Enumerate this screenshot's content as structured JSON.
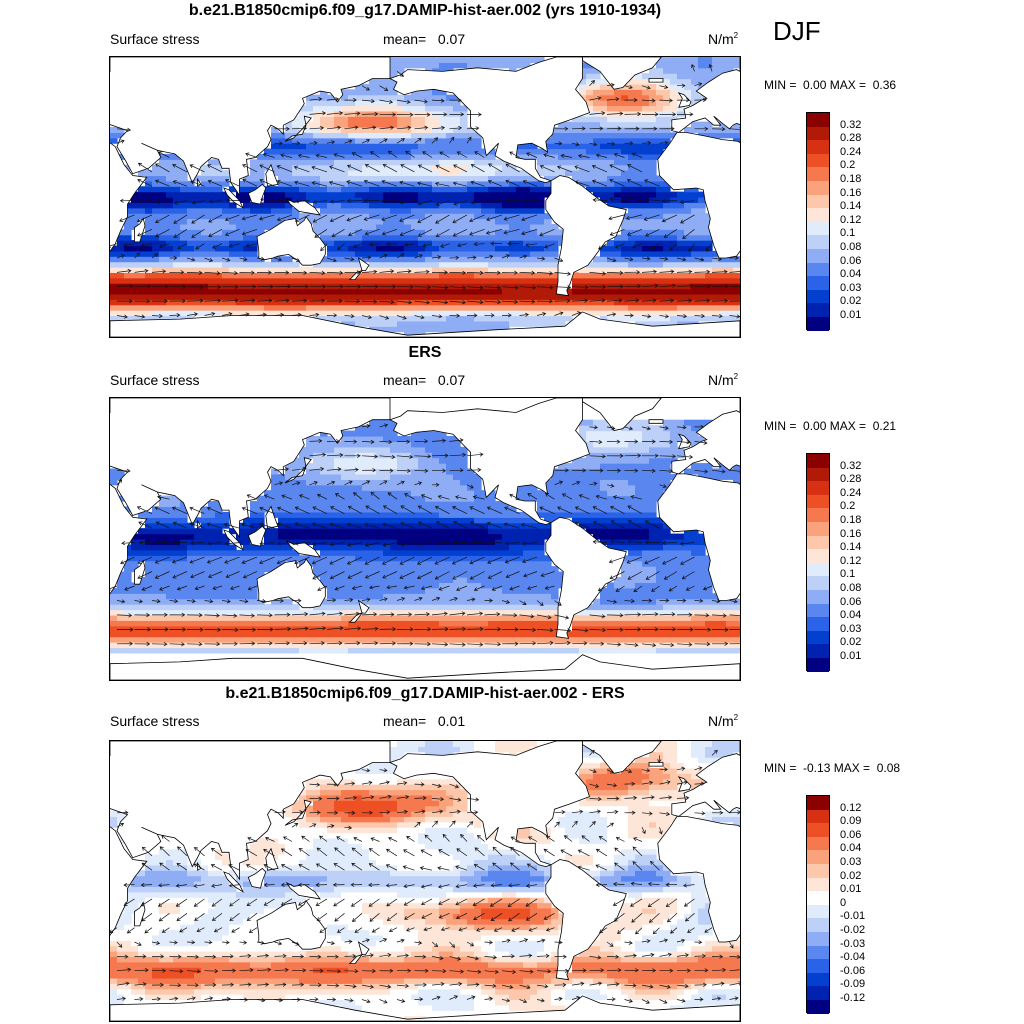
{
  "season": "DJF",
  "colors": {
    "seq": [
      "#000080",
      "#0022b0",
      "#0340d0",
      "#2a63e8",
      "#5a86f0",
      "#8fadf5",
      "#bcd0f8",
      "#e0ebfb",
      "#fde6d8",
      "#fcc7aa",
      "#f9a27c",
      "#f5784f",
      "#ee5025",
      "#d83012",
      "#b21a08",
      "#8b0000"
    ],
    "div": [
      "#000080",
      "#0022b0",
      "#0340d0",
      "#2a63e8",
      "#5a86f0",
      "#8fadf5",
      "#bcd0f8",
      "#e0ebfb",
      "#ffffff",
      "#fde6d8",
      "#fcc7aa",
      "#f9a27c",
      "#f5784f",
      "#ee5025",
      "#d83012",
      "#8b0000"
    ]
  },
  "panels": [
    {
      "title": "b.e21.B1850cmip6.f09_g17.DAMIP-hist-aer.002 (yrs 1910-1934)",
      "left_label": "Surface stress",
      "mean_label": "mean=",
      "mean_value": "0.07",
      "unit": "N/m",
      "unit_exp": "2",
      "min_label": "MIN =",
      "min_value": "0.00",
      "max_label": "MAX =",
      "max_value": "0.36",
      "levels": [
        "0.32",
        "0.28",
        "0.24",
        "0.2",
        "0.18",
        "0.16",
        "0.14",
        "0.12",
        "0.1",
        "0.08",
        "0.06",
        "0.04",
        "0.03",
        "0.02",
        "0.01"
      ],
      "palette": "seq",
      "pattern": "model"
    },
    {
      "title": "ERS",
      "left_label": "Surface stress",
      "mean_label": "mean=",
      "mean_value": "0.07",
      "unit": "N/m",
      "unit_exp": "2",
      "min_label": "MIN =",
      "min_value": "0.00",
      "max_label": "MAX =",
      "max_value": "0.21",
      "levels": [
        "0.32",
        "0.28",
        "0.24",
        "0.2",
        "0.18",
        "0.16",
        "0.14",
        "0.12",
        "0.1",
        "0.08",
        "0.06",
        "0.04",
        "0.03",
        "0.02",
        "0.01"
      ],
      "palette": "seq",
      "pattern": "obs"
    },
    {
      "title": "b.e21.B1850cmip6.f09_g17.DAMIP-hist-aer.002 - ERS",
      "left_label": "Surface stress",
      "mean_label": "mean=",
      "mean_value": "0.01",
      "unit": "N/m",
      "unit_exp": "2",
      "min_label": "MIN =",
      "min_value": "-0.13",
      "max_label": "MAX =",
      "max_value": "0.08",
      "levels": [
        "0.12",
        "0.09",
        "0.06",
        "0.04",
        "0.03",
        "0.02",
        "0.01",
        "0",
        "-0.01",
        "-0.02",
        "-0.03",
        "-0.04",
        "-0.06",
        "-0.09",
        "-0.12"
      ],
      "palette": "div",
      "pattern": "diff"
    }
  ],
  "chart_data": [
    {
      "type": "heatmap",
      "title": "b.e21.B1850cmip6.f09_g17.DAMIP-hist-aer.002 (yrs 1910-1934)",
      "variable": "Surface stress",
      "units": "N/m2",
      "mean": 0.07,
      "min": 0.0,
      "max": 0.36,
      "contour_levels": [
        0.01,
        0.02,
        0.03,
        0.04,
        0.06,
        0.08,
        0.1,
        0.12,
        0.14,
        0.16,
        0.18,
        0.2,
        0.24,
        0.28,
        0.32
      ],
      "overlay": "wind stress vectors",
      "xlim": [
        30,
        390
      ],
      "ylim": [
        -78,
        78
      ]
    },
    {
      "type": "heatmap",
      "title": "ERS",
      "variable": "Surface stress",
      "units": "N/m2",
      "mean": 0.07,
      "min": 0.0,
      "max": 0.21,
      "contour_levels": [
        0.01,
        0.02,
        0.03,
        0.04,
        0.06,
        0.08,
        0.1,
        0.12,
        0.14,
        0.16,
        0.18,
        0.2,
        0.24,
        0.28,
        0.32
      ],
      "overlay": "wind stress vectors",
      "xlim": [
        30,
        390
      ],
      "ylim": [
        -78,
        78
      ]
    },
    {
      "type": "heatmap",
      "title": "b.e21.B1850cmip6.f09_g17.DAMIP-hist-aer.002 - ERS",
      "variable": "Surface stress",
      "units": "N/m2",
      "mean": 0.01,
      "min": -0.13,
      "max": 0.08,
      "contour_levels": [
        -0.12,
        -0.09,
        -0.06,
        -0.04,
        -0.03,
        -0.02,
        -0.01,
        0,
        0.01,
        0.02,
        0.03,
        0.04,
        0.06,
        0.09,
        0.12
      ],
      "overlay": "wind stress vectors",
      "xlim": [
        30,
        390
      ],
      "ylim": [
        -78,
        78
      ]
    }
  ]
}
